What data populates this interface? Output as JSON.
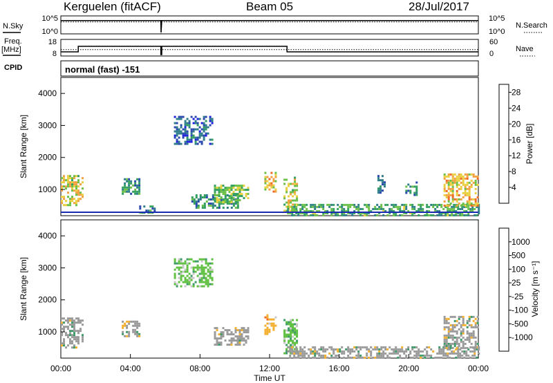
{
  "header": {
    "site": "Kerguelen (fitACF)",
    "beam": "Beam 05",
    "date": "28/Jul/2017"
  },
  "left_labels": {
    "nsky": "N.Sky",
    "freq_line1": "Freq.",
    "freq_line2": "[MHz]",
    "cpid": "CPID"
  },
  "right_labels": {
    "nsearch": "N.Search",
    "nave": "Nave"
  },
  "cpid_text": "normal (fast) -151",
  "colors": {
    "power": [
      "#2020e0",
      "#2a48b0",
      "#2f7e8a",
      "#33a060",
      "#6cc048",
      "#e8d040",
      "#f2a040",
      "#ef6a24",
      "#e01818"
    ],
    "velocity": [
      "#e02020",
      "#ef6a24",
      "#f4b030",
      "#c8c8c8",
      "#c8c8c8",
      "#60c040",
      "#3f9a6a",
      "#2a6aa0",
      "#2040c0"
    ],
    "ground_scatter": "#9a9a9a"
  },
  "chart_data": [
    {
      "type": "line",
      "name": "noise",
      "yticks_left": [
        "10^5",
        "10^0"
      ],
      "yticks_right": [
        "10^5",
        "10^0"
      ],
      "x": [
        0,
        5.75,
        5.76,
        5.8,
        24
      ],
      "series": [
        {
          "name": "N.Sky",
          "values": [
            20000,
            20000,
            1,
            20000,
            20000
          ]
        },
        {
          "name": "N.Search",
          "values": [
            20000,
            20000,
            1,
            20000,
            20000
          ]
        }
      ]
    },
    {
      "type": "line",
      "name": "freq_nave",
      "yticks_left": [
        "18",
        "8"
      ],
      "yticks_right": [
        "60",
        "0"
      ],
      "x": [
        0,
        1.0,
        1.0,
        5.75,
        5.75,
        5.8,
        5.8,
        13.0,
        13.0,
        24
      ],
      "series": [
        {
          "name": "Freq. [MHz]",
          "values": [
            10,
            10,
            14,
            14,
            8,
            8,
            14,
            14,
            10,
            10
          ]
        },
        {
          "name": "Nave",
          "values": [
            22,
            22,
            22,
            22,
            22,
            22,
            22,
            22,
            22,
            22
          ]
        }
      ]
    },
    {
      "type": "heatmap",
      "name": "power",
      "ylabel": "Slant Range [km]",
      "yticks": [
        "1000",
        "2000",
        "3000",
        "4000"
      ],
      "ylim": [
        180,
        4500
      ],
      "xlim": [
        0,
        24
      ],
      "colorbar_label": "Power [dB]",
      "colorbar_ticks": [
        "4",
        "8",
        "12",
        "16",
        "20",
        "24",
        "28"
      ],
      "clim": [
        0,
        30
      ],
      "regions": [
        {
          "t": [
            0.0,
            1.3
          ],
          "r": [
            500,
            1450
          ],
          "v": 18
        },
        {
          "t": [
            3.5,
            4.5
          ],
          "r": [
            850,
            1350
          ],
          "v": 10
        },
        {
          "t": [
            4.5,
            5.5
          ],
          "r": [
            300,
            500
          ],
          "v": 9
        },
        {
          "t": [
            6.5,
            8.7
          ],
          "r": [
            2450,
            3300
          ],
          "v": 6
        },
        {
          "t": [
            7.5,
            10.2
          ],
          "r": [
            400,
            850
          ],
          "v": 10
        },
        {
          "t": [
            8.8,
            10.8
          ],
          "r": [
            600,
            1150
          ],
          "v": 15
        },
        {
          "t": [
            11.7,
            12.3
          ],
          "r": [
            950,
            1550
          ],
          "v": 19
        },
        {
          "t": [
            12.8,
            13.6
          ],
          "r": [
            300,
            1400
          ],
          "v": 17
        },
        {
          "t": [
            13.0,
            24.0
          ],
          "r": [
            180,
            550
          ],
          "v": 12
        },
        {
          "t": [
            18.2,
            18.6
          ],
          "r": [
            900,
            1450
          ],
          "v": 8
        },
        {
          "t": [
            19.8,
            20.5
          ],
          "r": [
            850,
            1250
          ],
          "v": 10
        },
        {
          "t": [
            22.0,
            24.0
          ],
          "r": [
            500,
            1500
          ],
          "v": 20
        }
      ]
    },
    {
      "type": "heatmap",
      "name": "velocity",
      "ylabel": "Slant Range [km]",
      "xlabel": "Time UT",
      "xticks": [
        "00:00",
        "04:00",
        "08:00",
        "12:00",
        "16:00",
        "20:00",
        "00:00"
      ],
      "yticks": [
        "1000",
        "2000",
        "3000",
        "4000"
      ],
      "ylim": [
        180,
        4500
      ],
      "xlim": [
        0,
        24
      ],
      "colorbar_label": "Velocity [m s⁻¹]",
      "colorbar_ticks": [
        "1000",
        "500",
        "100",
        "25",
        "-25",
        "-100",
        "-500",
        "-1000"
      ],
      "regions": [
        {
          "t": [
            0.0,
            1.3
          ],
          "r": [
            500,
            1450
          ],
          "v": 0
        },
        {
          "t": [
            3.5,
            4.5
          ],
          "r": [
            850,
            1350
          ],
          "v": 0
        },
        {
          "t": [
            6.5,
            8.7
          ],
          "r": [
            2450,
            3300
          ],
          "v": 100
        },
        {
          "t": [
            8.8,
            10.8
          ],
          "r": [
            600,
            1150
          ],
          "v": 0
        },
        {
          "t": [
            11.7,
            12.3
          ],
          "r": [
            950,
            1550
          ],
          "v": -150
        },
        {
          "t": [
            12.8,
            13.6
          ],
          "r": [
            300,
            1400
          ],
          "v": 150
        },
        {
          "t": [
            13.0,
            24.0
          ],
          "r": [
            180,
            550
          ],
          "v": 0
        },
        {
          "t": [
            22.0,
            24.0
          ],
          "r": [
            500,
            1500
          ],
          "v": 0
        }
      ]
    }
  ]
}
